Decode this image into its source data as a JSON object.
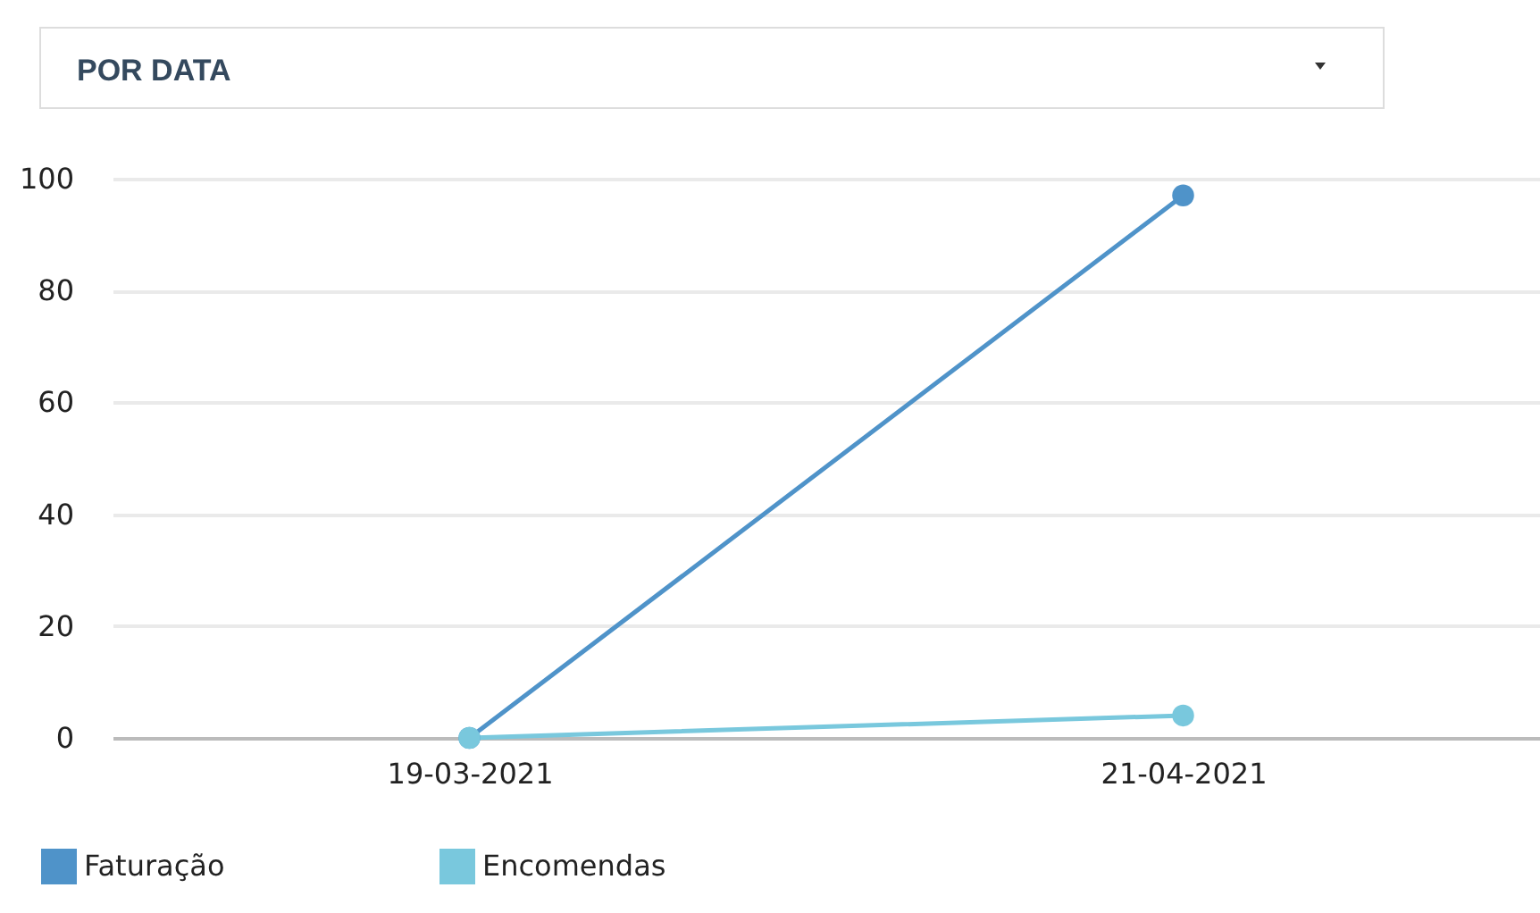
{
  "chart_data": {
    "type": "line",
    "categories": [
      "19-03-2021",
      "21-04-2021"
    ],
    "series": [
      {
        "name": "Faturação",
        "color": "#4f93c9",
        "values": [
          0,
          97
        ]
      },
      {
        "name": "Encomendas",
        "color": "#79c8dd",
        "values": [
          0,
          4
        ]
      }
    ],
    "ylim": [
      0,
      100
    ],
    "yticks": [
      0,
      20,
      40,
      60,
      80,
      100
    ],
    "grid": "y",
    "legend": "bottom left",
    "marker": "circle",
    "annotations": [
      "POR DATA"
    ]
  }
}
